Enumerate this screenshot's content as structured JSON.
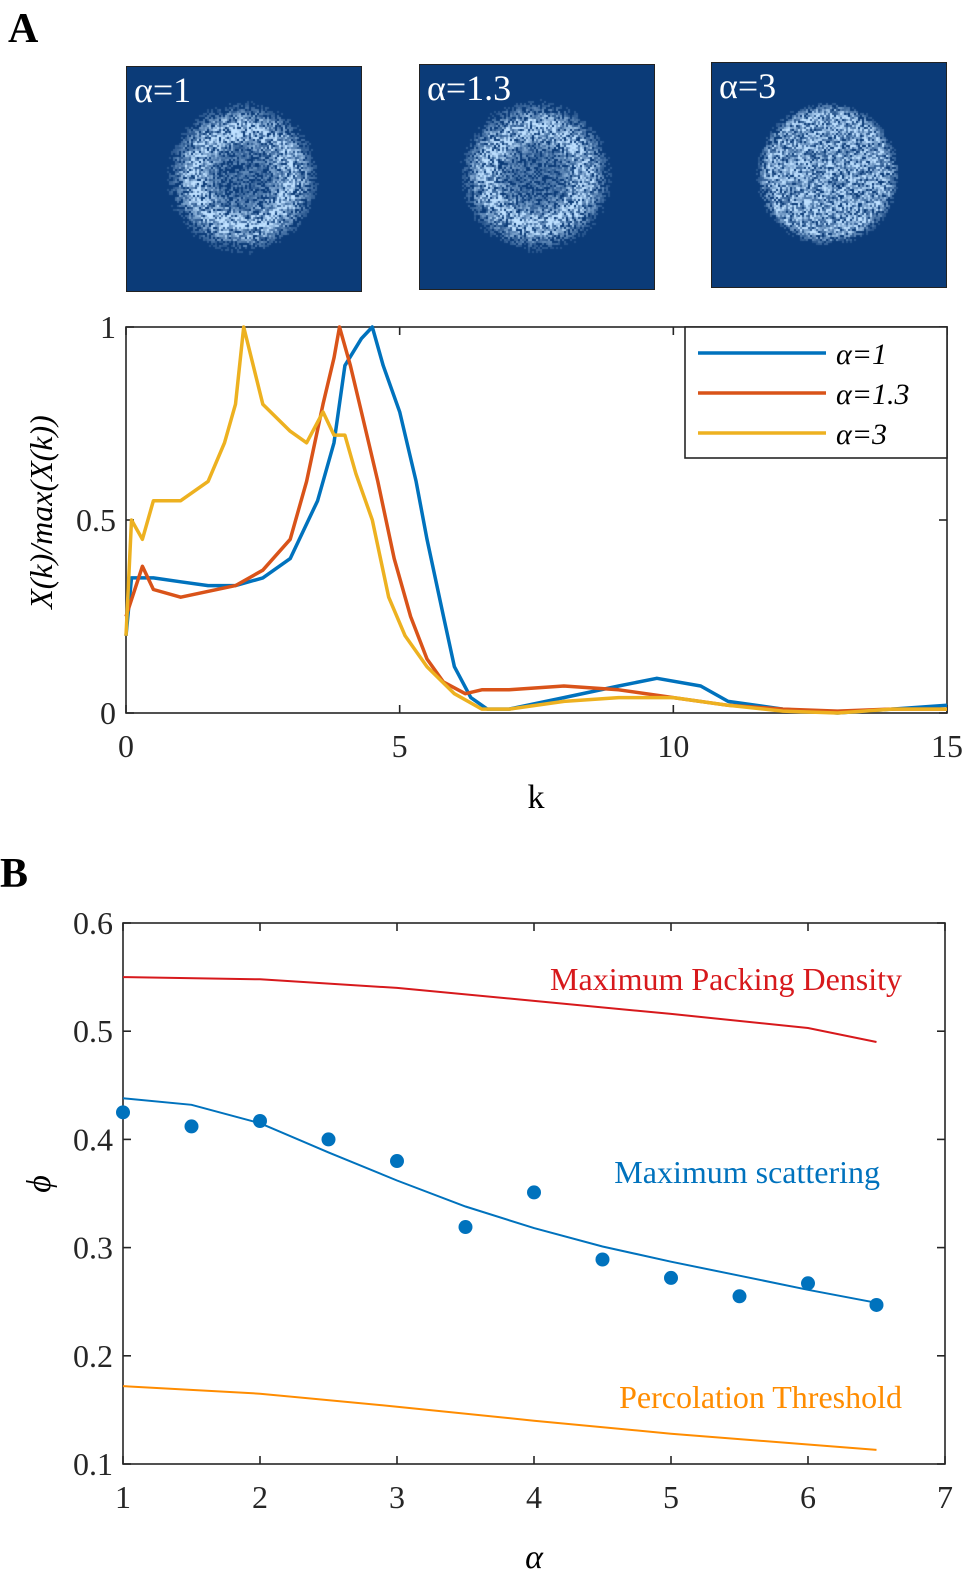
{
  "panel_labels": [
    "A",
    "B"
  ],
  "images": [
    {
      "label": "α=1",
      "pattern": "ring"
    },
    {
      "label": "α=1.3",
      "pattern": "ring"
    },
    {
      "label": "α=3",
      "pattern": "disk"
    }
  ],
  "colors": {
    "image_bg": "#0b3b78",
    "speckle": "#bfe0ff"
  },
  "chart_data": [
    {
      "type": "line",
      "xlabel": "k",
      "ylabel": "X(k)/max(X(k))",
      "xlim": [
        0,
        15
      ],
      "ylim": [
        0,
        1
      ],
      "xticks": [
        "0",
        "5",
        "10",
        "15"
      ],
      "yticks": [
        "0",
        "0.5",
        "1"
      ],
      "xtick_values": [
        0,
        5,
        10,
        15
      ],
      "ytick_values": [
        0,
        0.5,
        1
      ],
      "legend": "top-right",
      "grid": false,
      "series": [
        {
          "name": "α=1",
          "color": "#0072bd",
          "x": [
            0,
            0.1,
            0.5,
            1,
            1.5,
            2,
            2.5,
            3,
            3.5,
            3.8,
            4.0,
            4.3,
            4.5,
            4.7,
            5.0,
            5.3,
            5.5,
            5.8,
            6.0,
            6.3,
            6.6,
            7,
            8,
            9,
            9.7,
            10.5,
            11,
            12,
            13,
            14,
            15
          ],
          "y": [
            0.2,
            0.35,
            0.35,
            0.34,
            0.33,
            0.33,
            0.35,
            0.4,
            0.55,
            0.7,
            0.9,
            0.97,
            1.0,
            0.9,
            0.78,
            0.6,
            0.45,
            0.25,
            0.12,
            0.04,
            0.01,
            0.01,
            0.04,
            0.07,
            0.09,
            0.07,
            0.03,
            0.01,
            0.0,
            0.01,
            0.02
          ]
        },
        {
          "name": "α=1.3",
          "color": "#d95319",
          "x": [
            0,
            0.3,
            0.5,
            1,
            2,
            2.5,
            3,
            3.3,
            3.6,
            3.8,
            3.9,
            4.1,
            4.3,
            4.6,
            4.9,
            5.2,
            5.5,
            5.8,
            6.2,
            6.5,
            7,
            8,
            9,
            10,
            11,
            12,
            13,
            14,
            15
          ],
          "y": [
            0.25,
            0.38,
            0.32,
            0.3,
            0.33,
            0.37,
            0.45,
            0.6,
            0.8,
            0.92,
            1.0,
            0.9,
            0.78,
            0.6,
            0.4,
            0.25,
            0.14,
            0.08,
            0.05,
            0.06,
            0.06,
            0.07,
            0.06,
            0.04,
            0.02,
            0.01,
            0.005,
            0.01,
            0.01
          ]
        },
        {
          "name": "α=3",
          "color": "#edb120",
          "x": [
            0,
            0.1,
            0.3,
            0.5,
            1,
            1.5,
            1.8,
            2.0,
            2.15,
            2.5,
            3,
            3.3,
            3.6,
            3.8,
            4.0,
            4.2,
            4.5,
            4.8,
            5.1,
            5.5,
            6,
            6.5,
            7,
            8,
            9,
            10,
            11,
            12,
            13,
            14,
            15
          ],
          "y": [
            0.2,
            0.5,
            0.45,
            0.55,
            0.55,
            0.6,
            0.7,
            0.8,
            1.0,
            0.8,
            0.73,
            0.7,
            0.78,
            0.72,
            0.72,
            0.62,
            0.5,
            0.3,
            0.2,
            0.12,
            0.05,
            0.01,
            0.01,
            0.03,
            0.04,
            0.04,
            0.02,
            0.005,
            0.0,
            0.01,
            0.01
          ]
        }
      ]
    },
    {
      "type": "scatter",
      "xlabel": "α",
      "ylabel": "ϕ",
      "xlim": [
        1,
        7
      ],
      "ylim": [
        0.1,
        0.6
      ],
      "xticks": [
        "1",
        "2",
        "3",
        "4",
        "5",
        "6",
        "7"
      ],
      "yticks": [
        "0.1",
        "0.2",
        "0.3",
        "0.4",
        "0.5",
        "0.6"
      ],
      "xtick_values": [
        1,
        2,
        3,
        4,
        5,
        6,
        7
      ],
      "ytick_values": [
        0.1,
        0.2,
        0.3,
        0.4,
        0.5,
        0.6
      ],
      "grid": false,
      "points": {
        "color": "#0072bd",
        "x": [
          1,
          1.5,
          2,
          2.5,
          3,
          3.5,
          4,
          4.5,
          5,
          5.5,
          6,
          6.5
        ],
        "y": [
          0.425,
          0.412,
          0.417,
          0.4,
          0.38,
          0.319,
          0.351,
          0.289,
          0.272,
          0.255,
          0.267,
          0.247
        ]
      },
      "lines": [
        {
          "label": "Maximum Packing Density",
          "color": "#d7191c",
          "x": [
            1,
            2,
            3,
            4,
            5,
            6,
            6.5
          ],
          "y": [
            0.55,
            0.548,
            0.54,
            0.528,
            0.516,
            0.503,
            0.49
          ]
        },
        {
          "label": "Maximum scattering",
          "color": "#0072bd",
          "x": [
            1,
            1.5,
            2,
            2.5,
            3,
            3.5,
            4,
            4.5,
            5,
            5.5,
            6,
            6.5
          ],
          "y": [
            0.438,
            0.432,
            0.415,
            0.388,
            0.362,
            0.338,
            0.318,
            0.301,
            0.287,
            0.274,
            0.261,
            0.249
          ]
        },
        {
          "label": "Percolation Threshold",
          "color": "#ff8c00",
          "x": [
            1,
            2,
            3,
            4,
            5,
            6,
            6.5
          ],
          "y": [
            0.172,
            0.165,
            0.153,
            0.14,
            0.128,
            0.118,
            0.113
          ]
        }
      ]
    }
  ]
}
